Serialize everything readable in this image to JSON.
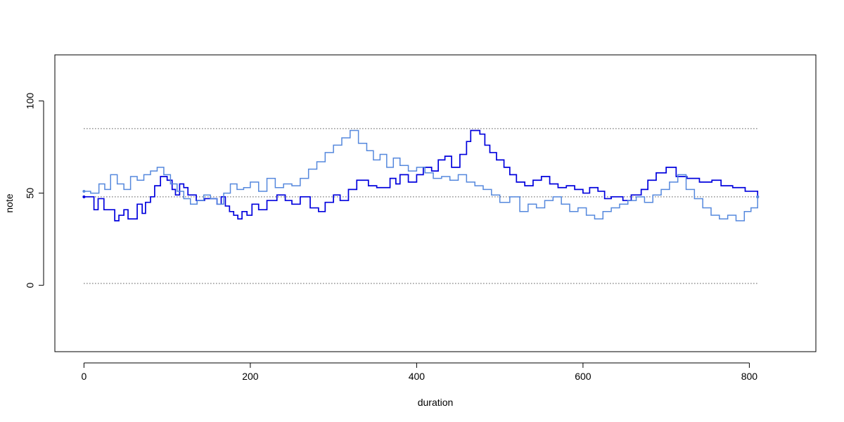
{
  "chart_data": {
    "type": "line",
    "xlabel": "duration",
    "ylabel": "note",
    "xlim": [
      -35,
      880
    ],
    "ylim": [
      -36,
      125
    ],
    "x_ticks": [
      0,
      200,
      400,
      600,
      800
    ],
    "x_tick_labels": [
      "0",
      "200",
      "400",
      "600",
      "800"
    ],
    "y_ticks": [
      0,
      50,
      100
    ],
    "y_tick_labels": [
      "0",
      "50",
      "100"
    ],
    "grid": false,
    "legend": "none",
    "reference_lines": [
      {
        "y": 85,
        "x_range": [
          0,
          810
        ],
        "style": "dotted",
        "color": "#000000"
      },
      {
        "y": 48,
        "x_range": [
          0,
          810
        ],
        "style": "dotted",
        "color": "#000000"
      },
      {
        "y": 1,
        "x_range": [
          0,
          810
        ],
        "style": "dotted",
        "color": "#000000"
      }
    ],
    "series": [
      {
        "color": "#0000dd",
        "step": true,
        "x": [
          0,
          12,
          17,
          24,
          37,
          42,
          48,
          53,
          64,
          70,
          74,
          80,
          85,
          92,
          100,
          106,
          110,
          115,
          120,
          125,
          135,
          145,
          160,
          165,
          170,
          175,
          180,
          185,
          190,
          196,
          202,
          210,
          220,
          232,
          242,
          250,
          260,
          272,
          282,
          290,
          300,
          308,
          318,
          328,
          342,
          352,
          368,
          375,
          380,
          390,
          400,
          408,
          418,
          426,
          434,
          442,
          452,
          460,
          465,
          476,
          482,
          488,
          496,
          505,
          512,
          520,
          530,
          540,
          550,
          560,
          570,
          580,
          590,
          600,
          608,
          618,
          626,
          634,
          648,
          658,
          670,
          678,
          688,
          700,
          712,
          725,
          740,
          755,
          766,
          780,
          795,
          810
        ],
        "y": [
          48,
          41,
          47,
          41,
          35,
          38,
          41,
          36,
          44,
          39,
          45,
          48,
          54,
          59,
          57,
          52,
          49,
          55,
          53,
          49,
          46,
          47,
          44,
          48,
          43,
          40,
          38,
          36,
          40,
          38,
          44,
          41,
          46,
          49,
          46,
          44,
          48,
          42,
          40,
          45,
          49,
          46,
          52,
          57,
          54,
          53,
          58,
          55,
          60,
          56,
          60,
          64,
          62,
          68,
          70,
          64,
          71,
          78,
          84,
          82,
          76,
          72,
          68,
          64,
          60,
          56,
          54,
          57,
          59,
          55,
          53,
          54,
          52,
          50,
          53,
          51,
          47,
          48,
          46,
          49,
          52,
          57,
          61,
          64,
          59,
          58,
          56,
          57,
          54,
          53,
          51,
          48
        ]
      },
      {
        "color": "#5588dd",
        "step": true,
        "x": [
          0,
          8,
          18,
          25,
          32,
          40,
          48,
          56,
          64,
          72,
          80,
          88,
          96,
          104,
          112,
          120,
          128,
          136,
          144,
          152,
          160,
          168,
          176,
          184,
          192,
          200,
          210,
          220,
          230,
          240,
          250,
          260,
          270,
          280,
          290,
          300,
          310,
          320,
          330,
          340,
          348,
          356,
          364,
          372,
          380,
          390,
          400,
          410,
          420,
          430,
          440,
          450,
          460,
          470,
          480,
          490,
          500,
          512,
          524,
          534,
          544,
          554,
          564,
          574,
          584,
          594,
          604,
          614,
          624,
          634,
          644,
          654,
          664,
          674,
          684,
          694,
          704,
          714,
          724,
          734,
          744,
          754,
          764,
          774,
          784,
          794,
          802,
          810
        ],
        "y": [
          51,
          50,
          55,
          52,
          60,
          55,
          52,
          59,
          57,
          60,
          62,
          64,
          60,
          55,
          51,
          47,
          44,
          46,
          49,
          47,
          44,
          50,
          55,
          52,
          53,
          56,
          51,
          58,
          53,
          55,
          54,
          58,
          63,
          67,
          72,
          76,
          80,
          84,
          77,
          73,
          68,
          71,
          64,
          69,
          65,
          62,
          64,
          61,
          58,
          59,
          57,
          60,
          56,
          54,
          52,
          49,
          45,
          48,
          40,
          44,
          42,
          46,
          48,
          44,
          40,
          42,
          38,
          36,
          40,
          42,
          44,
          46,
          48,
          45,
          49,
          52,
          56,
          60,
          52,
          47,
          42,
          38,
          36,
          38,
          35,
          40,
          42,
          48
        ]
      }
    ]
  }
}
